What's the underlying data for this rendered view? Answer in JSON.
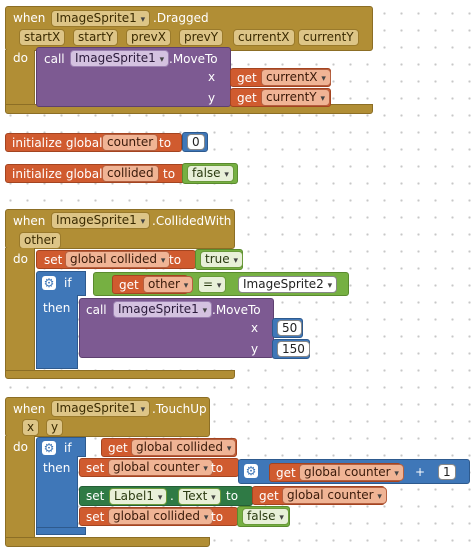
{
  "dragged": {
    "when": "when",
    "component": "ImageSprite1",
    "event": ".Dragged",
    "params": [
      "startX",
      "startY",
      "prevX",
      "prevY",
      "currentX",
      "currentY"
    ],
    "do": "do",
    "call": "call",
    "method": ".MoveTo",
    "x_label": "x",
    "y_label": "y",
    "get": "get",
    "get_x": "currentX",
    "get_y": "currentY"
  },
  "init_counter": {
    "label": "initialize global",
    "name": "counter",
    "to": "to",
    "value": "0"
  },
  "init_collided": {
    "label": "initialize global",
    "name": "collided",
    "to": "to",
    "value": "false"
  },
  "collided_with": {
    "when": "when",
    "component": "ImageSprite1",
    "event": ".CollidedWith",
    "param": "other",
    "do": "do",
    "set": "set",
    "set_var": "global collided",
    "to": "to",
    "true_value": "true",
    "if": "if",
    "get": "get",
    "get_var": "other",
    "op": "=",
    "compare": "ImageSprite2",
    "then": "then",
    "call": "call",
    "call_component": "ImageSprite1",
    "method": ".MoveTo",
    "x_label": "x",
    "y_label": "y",
    "x_value": "50",
    "y_value": "150"
  },
  "touch_up": {
    "when": "when",
    "component": "ImageSprite1",
    "event": ".TouchUp",
    "params": [
      "x",
      "y"
    ],
    "do": "do",
    "if": "if",
    "get": "get",
    "cond_var": "global collided",
    "then": "then",
    "set": "set",
    "counter_var": "global counter",
    "to": "to",
    "get_counter": "global counter",
    "plus": "+",
    "increment": "1",
    "label_component": "Label1",
    "dot": ".",
    "label_prop": "Text",
    "collided_var": "global collided",
    "false_value": "false"
  },
  "colors": {
    "event": "#b18e35",
    "procedure": "#7d5a92",
    "variable": "#d05b2f",
    "logic": "#76b042",
    "math": "#3f77b8",
    "component_set": "#2f7a45"
  },
  "icons": [
    "dropdown-arrow-icon",
    "gear-icon"
  ]
}
